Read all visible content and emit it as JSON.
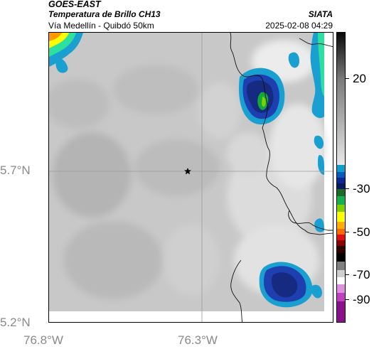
{
  "header": {
    "satellite": "GOES-EAST",
    "product": "Temperatura de Brillo CH13",
    "region": "Vía Medellín - Quibdó 50km",
    "agency": "SIATA",
    "datetime": "2025-02-08 04:29"
  },
  "axes": {
    "lat_labels": [
      "5.7°N",
      "5.2°N"
    ],
    "lon_labels": [
      "76.8°W",
      "76.3°W"
    ]
  },
  "colorbar": {
    "labels": [
      "20",
      "-30",
      "-50",
      "-70",
      "-90"
    ]
  },
  "colors": {
    "grey_background": "#c8c8c8",
    "cold_cloud": "#1a2a80",
    "cloud_edge": "#0aa0c8",
    "warm_edge": "#ffff00",
    "border_line": "#000000"
  },
  "marker": {
    "icon": "star-icon"
  }
}
